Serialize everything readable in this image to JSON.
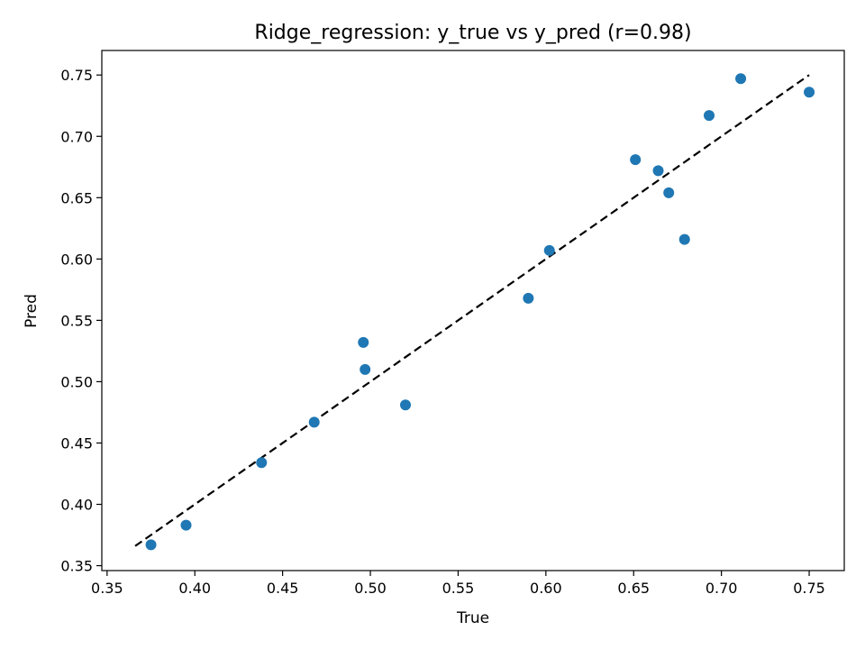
{
  "chart_data": {
    "type": "scatter",
    "title": "Ridge_regression: y_true vs y_pred (r=0.98)",
    "xlabel": "True",
    "ylabel": "Pred",
    "xlim": [
      0.347,
      0.77
    ],
    "ylim": [
      0.346,
      0.77
    ],
    "xticks": [
      0.35,
      0.4,
      0.45,
      0.5,
      0.55,
      0.6,
      0.65,
      0.7,
      0.75
    ],
    "xtick_labels": [
      "0.35",
      "0.40",
      "0.45",
      "0.50",
      "0.55",
      "0.60",
      "0.65",
      "0.70",
      "0.75"
    ],
    "yticks": [
      0.35,
      0.4,
      0.45,
      0.5,
      0.55,
      0.6,
      0.65,
      0.7,
      0.75
    ],
    "ytick_labels": [
      "0.35",
      "0.40",
      "0.45",
      "0.50",
      "0.55",
      "0.60",
      "0.65",
      "0.70",
      "0.75"
    ],
    "grid": false,
    "marker_color": "#1f77b4",
    "reference_line": {
      "x": [
        0.366,
        0.75
      ],
      "y": [
        0.366,
        0.75
      ],
      "color": "#000000",
      "style": "dashed"
    },
    "points": {
      "x": [
        0.375,
        0.395,
        0.438,
        0.468,
        0.496,
        0.497,
        0.52,
        0.59,
        0.602,
        0.651,
        0.664,
        0.67,
        0.679,
        0.693,
        0.711,
        0.75
      ],
      "y": [
        0.367,
        0.383,
        0.434,
        0.467,
        0.532,
        0.51,
        0.481,
        0.568,
        0.607,
        0.681,
        0.672,
        0.654,
        0.616,
        0.717,
        0.747,
        0.736
      ]
    }
  }
}
